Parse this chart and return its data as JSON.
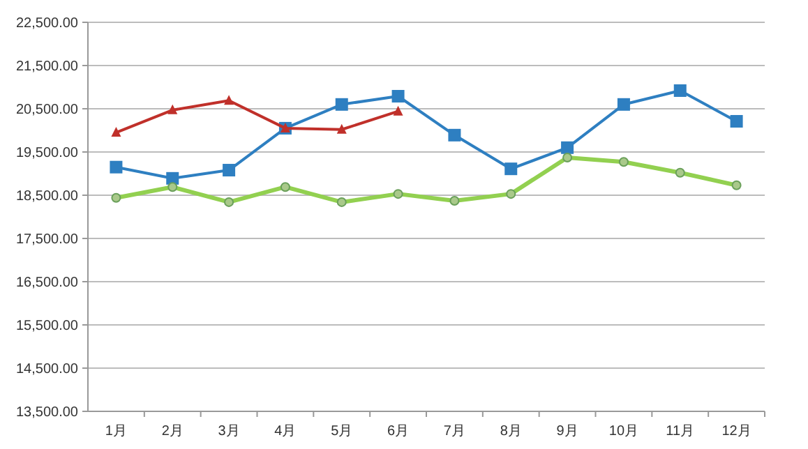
{
  "chart_data": {
    "type": "line",
    "categories": [
      "1月",
      "2月",
      "3月",
      "4月",
      "5月",
      "6月",
      "7月",
      "8月",
      "9月",
      "10月",
      "11月",
      "12月"
    ],
    "series": [
      {
        "color": "#2e7fc1",
        "marker": "square",
        "values": [
          19150,
          18890,
          19080,
          20050,
          20600,
          20790,
          19890,
          19110,
          19600,
          20600,
          20920,
          20210
        ]
      },
      {
        "color": "#c0302a",
        "marker": "triangle",
        "values": [
          19950,
          20470,
          20690,
          20050,
          20020,
          20440,
          null,
          null,
          null,
          null,
          null,
          null
        ]
      },
      {
        "color": "#92d050",
        "marker": "circle",
        "values": [
          18440,
          18690,
          18340,
          18690,
          18340,
          18530,
          18370,
          18530,
          19370,
          19270,
          19020,
          18730
        ]
      }
    ],
    "ylim": [
      13500,
      22500
    ],
    "yticks": [
      {
        "value": 13500,
        "label": "13,500.00"
      },
      {
        "value": 14500,
        "label": "14,500.00"
      },
      {
        "value": 15500,
        "label": "15,500.00"
      },
      {
        "value": 16500,
        "label": "16,500.00"
      },
      {
        "value": 17500,
        "label": "17,500.00"
      },
      {
        "value": 18500,
        "label": "18,500.00"
      },
      {
        "value": 19500,
        "label": "19,500.00"
      },
      {
        "value": 20500,
        "label": "20,500.00"
      },
      {
        "value": 21500,
        "label": "21,500.00"
      },
      {
        "value": 22500,
        "label": "22,500.00"
      }
    ],
    "grid": "y"
  }
}
